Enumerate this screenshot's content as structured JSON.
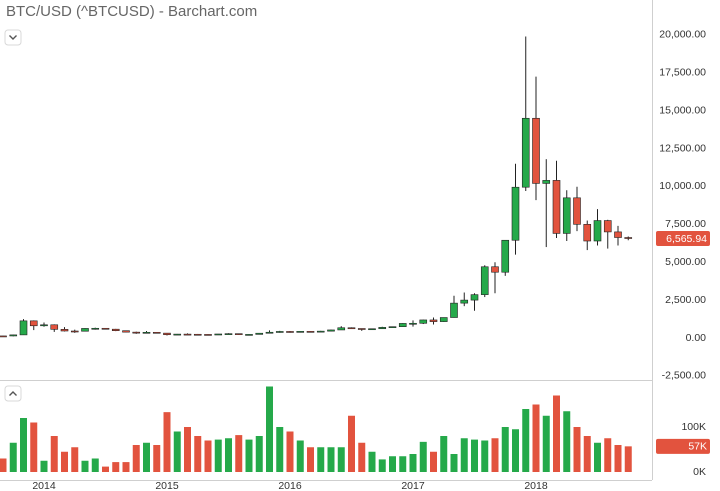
{
  "chart_data": [
    {
      "type": "candlestick",
      "title": "BTC/USD (^BTCUSD) - Barchart.com",
      "up_color": "#25a94a",
      "down_color": "#e2533e",
      "open": [
        135,
        133,
        204,
        1130,
        805,
        870,
        570,
        460,
        445,
        630,
        640,
        580,
        480,
        385,
        340,
        375,
        320,
        215,
        255,
        245,
        235,
        230,
        263,
        285,
        230,
        236,
        314,
        378,
        430,
        370,
        437,
        416,
        450,
        530,
        675,
        625,
        575,
        610,
        700,
        745,
        960,
        970,
        1190,
        1080,
        1350,
        2300,
        2500,
        2860,
        4700,
        4340,
        6450,
        9950,
        14500,
        10200,
        10400,
        6900,
        9250,
        7500,
        6400,
        7750,
        7000,
        6630
      ],
      "high": [
        140,
        220,
        1240,
        1160,
        1020,
        900,
        720,
        550,
        640,
        680,
        650,
        600,
        495,
        415,
        460,
        385,
        330,
        265,
        300,
        265,
        245,
        265,
        315,
        285,
        245,
        330,
        500,
        470,
        460,
        440,
        440,
        470,
        550,
        780,
        700,
        625,
        620,
        740,
        755,
        975,
        1160,
        1210,
        1350,
        1350,
        2790,
        3000,
        2950,
        4800,
        5000,
        6450,
        11500,
        19900,
        17250,
        11800,
        11700,
        9750,
        9980,
        7750,
        8500,
        7800,
        7400,
        6700
      ],
      "low": [
        120,
        110,
        195,
        520,
        740,
        400,
        430,
        340,
        430,
        550,
        565,
        450,
        370,
        275,
        330,
        300,
        165,
        210,
        235,
        210,
        225,
        220,
        255,
        200,
        225,
        235,
        300,
        350,
        350,
        365,
        405,
        415,
        435,
        530,
        600,
        470,
        570,
        605,
        680,
        740,
        750,
        920,
        890,
        1060,
        1340,
        2100,
        1800,
        2700,
        2950,
        4100,
        5500,
        9700,
        9100,
        6000,
        6600,
        6400,
        7050,
        5800,
        6100,
        5900,
        6100,
        6450
      ],
      "close": [
        133,
        204,
        1130,
        805,
        870,
        570,
        460,
        445,
        630,
        640,
        580,
        480,
        385,
        340,
        375,
        320,
        215,
        255,
        245,
        235,
        230,
        263,
        285,
        230,
        236,
        314,
        378,
        430,
        370,
        437,
        416,
        450,
        530,
        675,
        625,
        575,
        610,
        700,
        745,
        960,
        970,
        1190,
        1080,
        1350,
        2300,
        2500,
        2860,
        4700,
        4340,
        6450,
        9950,
        14500,
        10200,
        10400,
        6900,
        9250,
        7500,
        6400,
        7750,
        7000,
        6630,
        6565.94
      ],
      "ylim": [
        -2800,
        20900
      ],
      "yticks": [
        {
          "value": -2500,
          "label": "-2,500.00"
        },
        {
          "value": 0,
          "label": "0.00"
        },
        {
          "value": 2500,
          "label": "2,500.00"
        },
        {
          "value": 5000,
          "label": "5,000.00"
        },
        {
          "value": 7500,
          "label": "7,500.00"
        },
        {
          "value": 10000,
          "label": "10,000.00"
        },
        {
          "value": 12500,
          "label": "12,500.00"
        },
        {
          "value": 15000,
          "label": "15,000.00"
        },
        {
          "value": 17500,
          "label": "17,500.00"
        },
        {
          "value": 20000,
          "label": "20,000.00"
        }
      ],
      "xticks": [
        {
          "value": 4,
          "label": "2014"
        },
        {
          "value": 16,
          "label": "2015"
        },
        {
          "value": 28,
          "label": "2016"
        },
        {
          "value": 40,
          "label": "2017"
        },
        {
          "value": 52,
          "label": "2018"
        }
      ],
      "last_price": {
        "value": 6565.94,
        "label": "6,565.94"
      },
      "grid": true
    },
    {
      "type": "bar",
      "values": [
        30000,
        65000,
        120000,
        110000,
        25000,
        80000,
        45000,
        55000,
        25000,
        30000,
        12000,
        22000,
        22000,
        60000,
        65000,
        60000,
        133000,
        90000,
        100000,
        80000,
        70000,
        72000,
        75000,
        82000,
        72000,
        80000,
        190000,
        100000,
        90000,
        70000,
        55000,
        55000,
        55000,
        55000,
        125000,
        65000,
        45000,
        28000,
        35000,
        35000,
        40000,
        67000,
        45000,
        80000,
        40000,
        75000,
        72000,
        70000,
        75000,
        100000,
        95000,
        140000,
        150000,
        125000,
        170000,
        135000,
        100000,
        80000,
        65000,
        75000,
        60000,
        57000
      ],
      "ylim": [
        0,
        200000
      ],
      "yticks": [
        {
          "value": 0,
          "label": "0K"
        },
        {
          "value": 100000,
          "label": "100K"
        }
      ],
      "last_volume": {
        "value": 57000,
        "label": "57K"
      }
    }
  ]
}
